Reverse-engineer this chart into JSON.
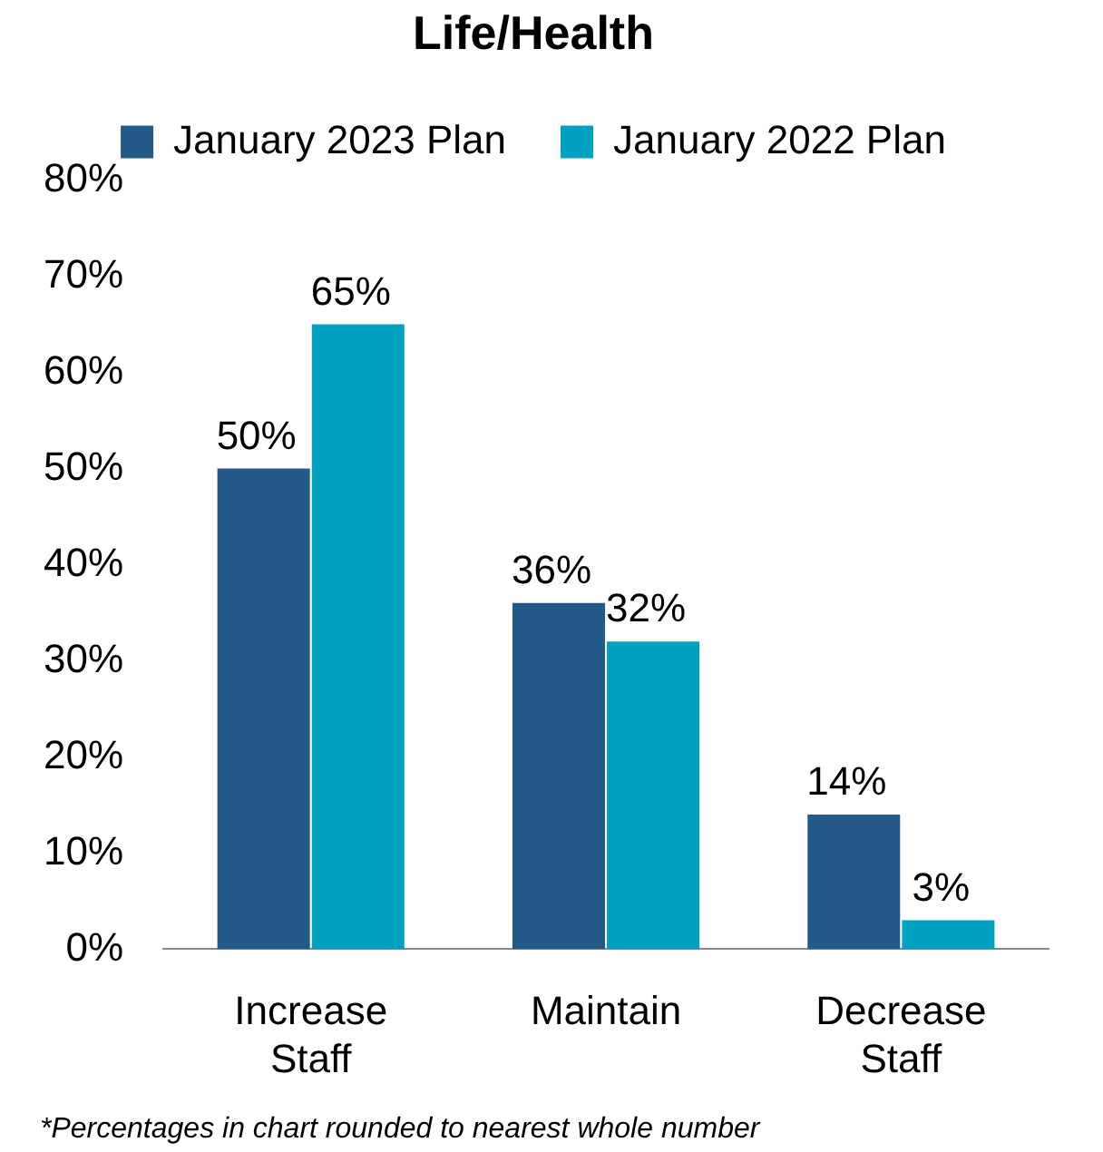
{
  "chart_data": {
    "type": "bar",
    "title": "Life/Health",
    "categories": [
      "Increase Staff",
      "Maintain",
      "Decrease Staff"
    ],
    "series": [
      {
        "name": "January 2023 Plan",
        "color": "#245a87",
        "values": [
          50,
          36,
          14
        ],
        "value_labels": [
          "50%",
          "36%",
          "14%"
        ]
      },
      {
        "name": "January 2022 Plan",
        "color": "#00a0c0",
        "values": [
          65,
          32,
          3
        ],
        "value_labels": [
          "65%",
          "32%",
          "3%"
        ]
      }
    ],
    "ylim": [
      0,
      80
    ],
    "yticks": [
      {
        "value": 0,
        "label": "0%"
      },
      {
        "value": 10,
        "label": "10%"
      },
      {
        "value": 20,
        "label": "20%"
      },
      {
        "value": 30,
        "label": "30%"
      },
      {
        "value": 40,
        "label": "40%"
      },
      {
        "value": 50,
        "label": "50%"
      },
      {
        "value": 60,
        "label": "60%"
      },
      {
        "value": 70,
        "label": "70%"
      },
      {
        "value": 80,
        "label": "80%"
      }
    ],
    "grid": false,
    "legend": "top",
    "annotations": [
      "*Percentages in chart rounded to nearest whole number"
    ]
  }
}
